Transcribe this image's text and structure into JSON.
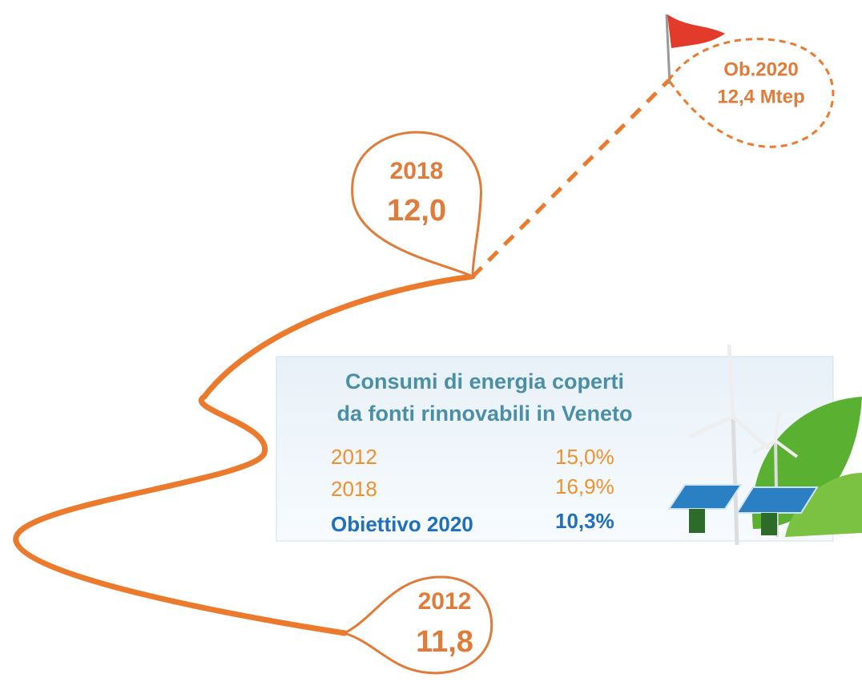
{
  "milestones": [
    {
      "year": "2012",
      "value": "11,8"
    },
    {
      "year": "2018",
      "value": "12,0"
    }
  ],
  "goal": {
    "label": "Ob.2020",
    "value": "12,4 Mtep"
  },
  "box": {
    "title": [
      "Consumi di energia coperti",
      "da fonti rinnovabili  in Veneto"
    ],
    "rows": [
      [
        "2012",
        "15,0%"
      ],
      [
        "2018",
        "16,9%"
      ],
      [
        "Obiettivo 2020",
        "10,3%"
      ]
    ]
  }
}
